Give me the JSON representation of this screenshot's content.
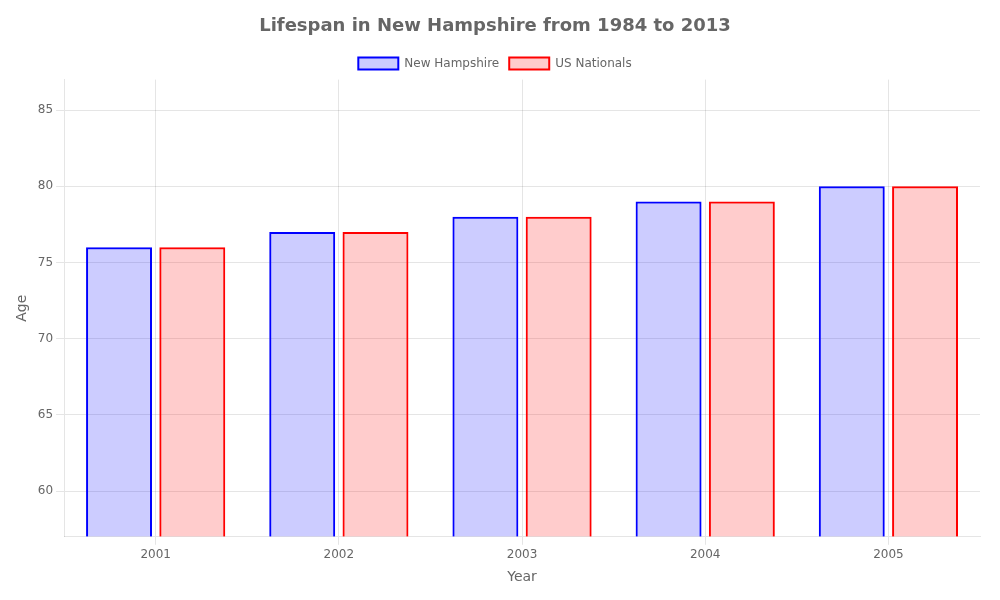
{
  "chart_data": {
    "type": "bar",
    "title": "Lifespan in New Hampshire from 1984 to 2013",
    "xlabel": "Year",
    "ylabel": "Age",
    "categories": [
      "2001",
      "2002",
      "2003",
      "2004",
      "2005"
    ],
    "series": [
      {
        "name": "New Hampshire",
        "color": "#0000ff",
        "values": [
          76.0,
          77.0,
          78.0,
          79.0,
          80.0
        ]
      },
      {
        "name": "US Nationals",
        "color": "#ff0000",
        "values": [
          76.0,
          77.0,
          78.0,
          79.0,
          80.0
        ]
      }
    ],
    "ylim": [
      57,
      87
    ],
    "yticks": [
      60,
      65,
      70,
      75,
      80,
      85
    ],
    "grid": true,
    "legend": "top"
  }
}
